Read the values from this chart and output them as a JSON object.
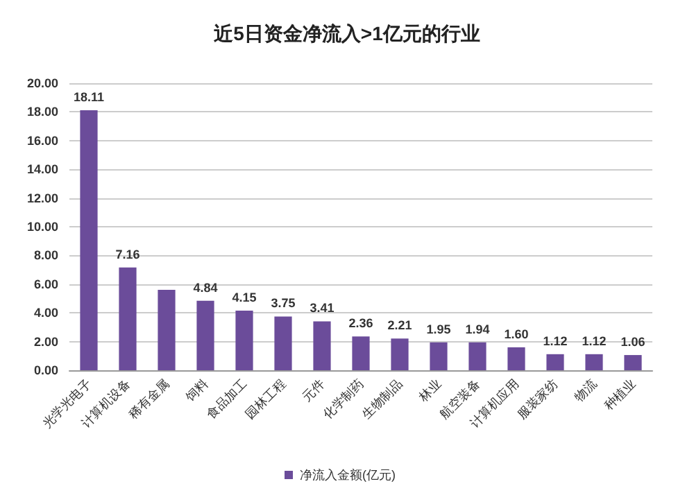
{
  "chart_data": {
    "type": "bar",
    "title": "近5日资金净流入>1亿元的行业",
    "categories": [
      "光学光电子",
      "计算机设备",
      "稀有金属",
      "饲料",
      "食品加工",
      "园林工程",
      "元件",
      "化学制药",
      "生物制品",
      "林业",
      "航空装备",
      "计算机应用",
      "服装家纺",
      "物流",
      "种植业"
    ],
    "series": [
      {
        "name": "净流入金额(亿元)",
        "color": "#6b4c9a",
        "values": [
          18.11,
          7.16,
          5.6,
          4.84,
          4.15,
          3.75,
          3.41,
          2.36,
          2.21,
          1.95,
          1.94,
          1.6,
          1.12,
          1.12,
          1.06
        ],
        "value_labels": [
          "18.11",
          "7.16",
          null,
          "4.84",
          "4.15",
          "3.75",
          "3.41",
          "2.36",
          "2.21",
          "1.95",
          "1.94",
          "1.60",
          "1.12",
          "1.12",
          "1.06"
        ]
      }
    ],
    "ylim": [
      0,
      20
    ],
    "yticks": [
      {
        "value": 0,
        "label": "0.00"
      },
      {
        "value": 2,
        "label": "2.00"
      },
      {
        "value": 4,
        "label": "4.00"
      },
      {
        "value": 6,
        "label": "6.00"
      },
      {
        "value": 8,
        "label": "8.00"
      },
      {
        "value": 10,
        "label": "10.00"
      },
      {
        "value": 12,
        "label": "12.00"
      },
      {
        "value": 14,
        "label": "14.00"
      },
      {
        "value": 16,
        "label": "16.00"
      },
      {
        "value": 18,
        "label": "18.00"
      },
      {
        "value": 20,
        "label": "20.00"
      }
    ],
    "grid": "y",
    "legend": "bottom left"
  }
}
